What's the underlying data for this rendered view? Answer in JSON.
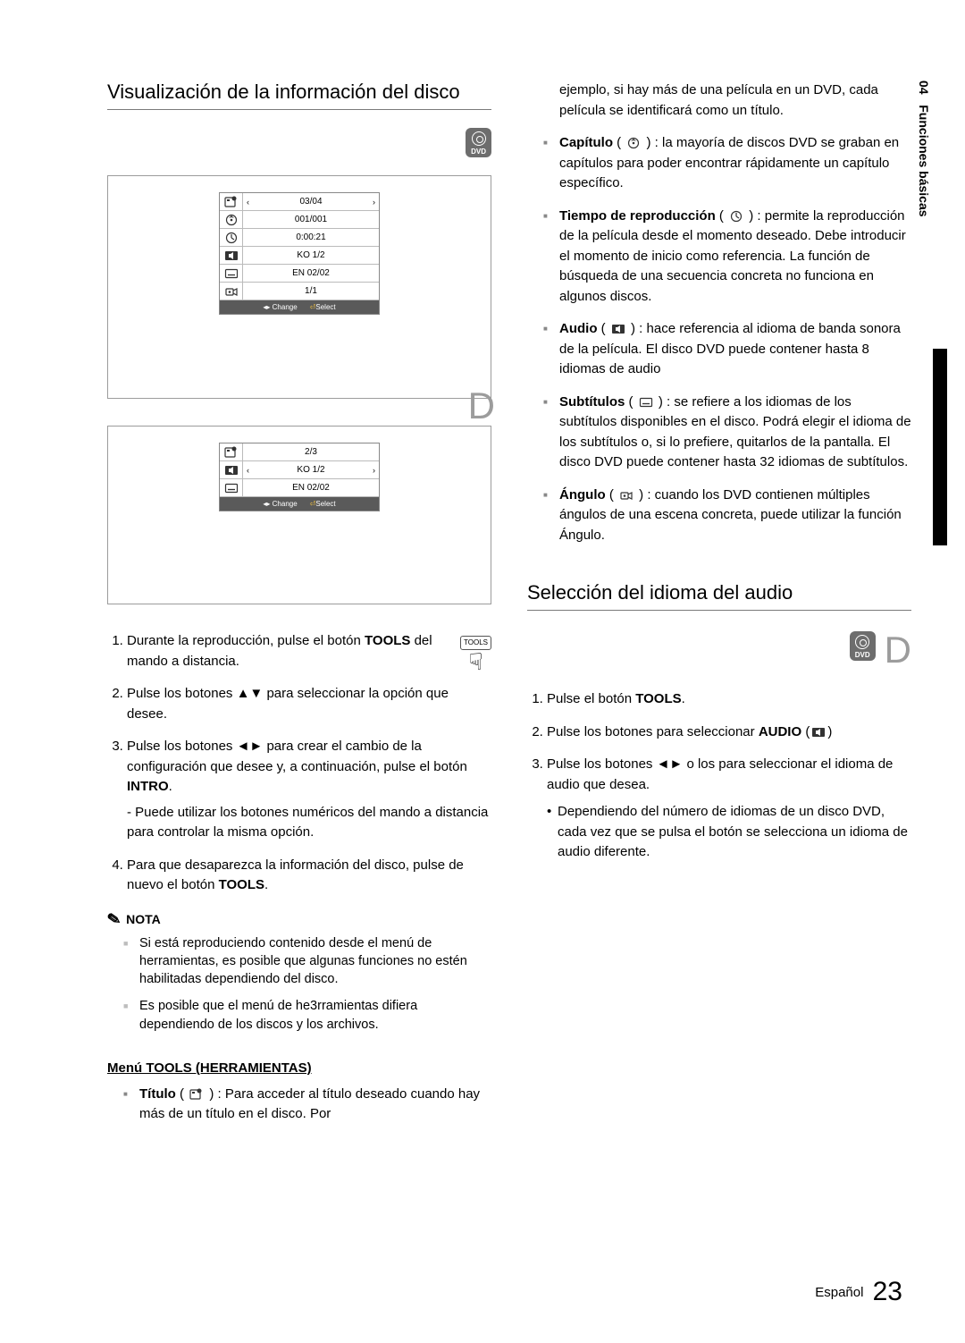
{
  "side": {
    "chapter": "04",
    "label": "Funciones básicas"
  },
  "left": {
    "title": "Visualización de la información del disco",
    "badge_text": "DVD",
    "screen1": {
      "rows": [
        {
          "icon": "title",
          "val": "03/04",
          "arrows": "both"
        },
        {
          "icon": "chapter",
          "val": "001/001"
        },
        {
          "icon": "time",
          "val": "0:00:21"
        },
        {
          "icon": "audio",
          "val": "KO 1/2"
        },
        {
          "icon": "subtitle",
          "val": "EN 02/02"
        },
        {
          "icon": "angle",
          "val": "1/1"
        }
      ],
      "bar_change": "Change",
      "bar_select": "Select"
    },
    "corner_d": "D",
    "screen2": {
      "rows": [
        {
          "icon": "title",
          "val": "2/3"
        },
        {
          "icon": "audio",
          "val": "KO 1/2",
          "arrows": "both"
        },
        {
          "icon": "subtitle",
          "val": "EN 02/02"
        }
      ],
      "bar_change": "Change",
      "bar_select": "Select"
    },
    "steps": [
      {
        "pre": "Durante la reproducción, pulse el botón ",
        "strong": "TOOLS",
        "post": " del mando a distancia."
      },
      {
        "pre": "Pulse los botones ▲▼ para seleccionar la opción que desee."
      },
      {
        "pre": "Pulse los botones ◄► para crear el cambio de la configuración que desee y, a continuación, pulse el botón ",
        "strong": "INTRO",
        "post": ".",
        "sub": "- Puede utilizar los botones numéricos del mando a distancia para controlar la misma opción."
      },
      {
        "pre": "Para que desaparezca la información del disco, pulse de nuevo el botón ",
        "strong": "TOOLS",
        "post": "."
      }
    ],
    "nota_label": "NOTA",
    "nota": [
      "Si está reproduciendo contenido desde el menú de herramientas, es posible que algunas funciones no estén habilitadas dependiendo del disco.",
      "Es posible que el menú de he3rramientas difiera dependiendo de los discos y los archivos."
    ],
    "menu_head": "Menú TOOLS (HERRAMIENTAS)",
    "titulo_label": "Título",
    "titulo_text": " : Para acceder al título deseado cuando hay más de un título en el disco. Por"
  },
  "right": {
    "intro": "ejemplo, si hay más de una película en un DVD, cada película se identificará como un título.",
    "features": [
      {
        "label": "Capítulo",
        "icon": "chapter",
        "text": " : la mayoría de discos DVD se graban en capítulos para poder encontrar rápidamente un capítulo específico."
      },
      {
        "label": "Tiempo de reproducción",
        "icon": "time",
        "text": " : permite la reproducción de la película desde el momento deseado. Debe introducir el momento de inicio como referencia. La función de búsqueda de una secuencia concreta no funciona en algunos discos."
      },
      {
        "label": "Audio",
        "icon": "audio",
        "text": ": hace referencia al idioma de banda sonora de la película. El disco DVD puede contener hasta 8 idiomas de audio"
      },
      {
        "label": "Subtítulos",
        "icon": "subtitle",
        "text": ": se refiere a los idiomas de los subtítulos disponibles en el disco. Podrá elegir el idioma de los subtítulos o, si lo prefiere, quitarlos de la pantalla. El disco DVD puede contener hasta 32 idiomas de subtítulos."
      },
      {
        "label": "Ángulo",
        "icon": "angle",
        "text": ": cuando los DVD contienen múltiples ángulos de una escena concreta, puede utilizar la función Ángulo."
      }
    ],
    "title2": "Selección del idioma del audio",
    "badge_text": "DVD",
    "corner_d": "D",
    "steps2": [
      {
        "pre": "Pulse el botón ",
        "strong": "TOOLS",
        "post": "."
      },
      {
        "pre": "Pulse los botones        para seleccionar ",
        "strong": "AUDIO",
        "post": " (",
        "icon_after": "audio",
        "post2": ")"
      },
      {
        "pre": "Pulse los botones ◄► o los para seleccionar el idioma de audio que desea.",
        "bullet": "Dependiendo del número de idiomas de un disco DVD, cada vez que se pulsa el botón se selecciona un idioma de audio diferente."
      }
    ]
  },
  "footer": {
    "lang": "Español",
    "page": "23"
  }
}
